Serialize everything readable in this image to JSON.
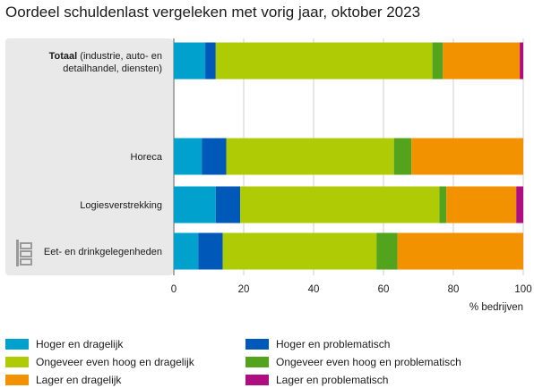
{
  "title": "Oordeel schuldenlast vergeleken met vorig jaar, oktober 2023",
  "colors": {
    "hoger_dragelijk": "#00a1cd",
    "hoger_problematisch": "#0058b8",
    "ongeveer_dragelijk": "#afcb05",
    "ongeveer_problematisch": "#53a31d",
    "lager_dragelijk": "#f39200",
    "lager_problematisch": "#af0e80",
    "panel": "#e9e9e9"
  },
  "logo_icon": "cbs-logo-icon",
  "chart_data": {
    "type": "bar",
    "orientation": "horizontal",
    "stacked": true,
    "categories": [
      {
        "bold": "Totaal",
        "rest": " (industrie, auto- en",
        "line2": "detailhandel, diensten)"
      },
      {
        "bold": "",
        "rest": "",
        "line2": ""
      },
      {
        "bold": "",
        "rest": "Horeca",
        "line2": ""
      },
      {
        "bold": "",
        "rest": "Logiesverstrekking",
        "line2": ""
      },
      {
        "bold": "",
        "rest": "Eet- en drinkgelegenheden",
        "line2": ""
      }
    ],
    "series": [
      {
        "name": "Hoger en dragelijk",
        "color_key": "hoger_dragelijk",
        "values": [
          9,
          null,
          8,
          12,
          7
        ]
      },
      {
        "name": "Hoger en problematisch",
        "color_key": "hoger_problematisch",
        "values": [
          3,
          null,
          7,
          7,
          7
        ]
      },
      {
        "name": "Ongeveer even hoog en dragelijk",
        "color_key": "ongeveer_dragelijk",
        "values": [
          62,
          null,
          48,
          57,
          44
        ]
      },
      {
        "name": "Ongeveer even hoog en problematisch",
        "color_key": "ongeveer_problematisch",
        "values": [
          3,
          null,
          5,
          2,
          6
        ]
      },
      {
        "name": "Lager en dragelijk",
        "color_key": "lager_dragelijk",
        "values": [
          22,
          null,
          32,
          20,
          36
        ]
      },
      {
        "name": "Lager en problematisch",
        "color_key": "lager_problematisch",
        "values": [
          1,
          null,
          0,
          2,
          0
        ]
      }
    ],
    "xlim": [
      0,
      100
    ],
    "xticks": [
      "0",
      "20",
      "40",
      "60",
      "80",
      "100"
    ],
    "xlabel": "% bedrijven",
    "grid": true,
    "legend_position": "bottom"
  }
}
